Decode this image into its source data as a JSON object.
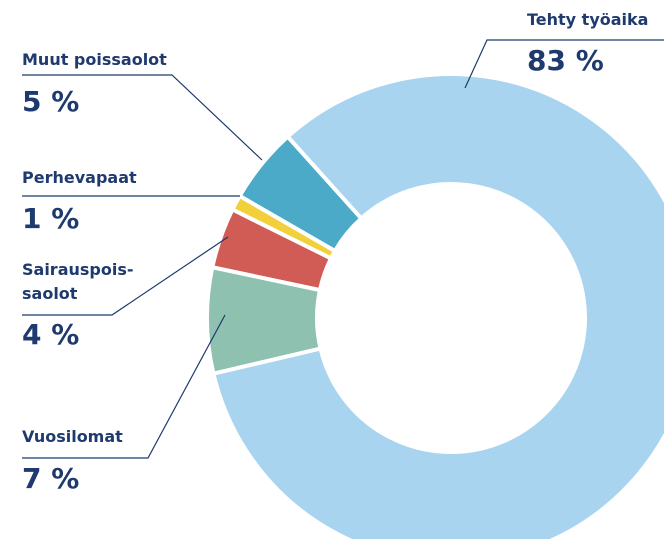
{
  "chart_data": {
    "type": "donut",
    "categories": [
      "Tehty työaika",
      "Vuosilomat",
      "Sairauspois-\nsaolot",
      "Perhevapaat",
      "Muut poissaolot"
    ],
    "values": [
      83,
      7,
      4,
      1,
      5
    ],
    "value_labels": [
      "83 %",
      "7 %",
      "4 %",
      "1 %",
      "5 %"
    ],
    "colors": [
      "#a9d4ef",
      "#8fc1b0",
      "#d15c55",
      "#f2d03c",
      "#4aaac8"
    ]
  }
}
